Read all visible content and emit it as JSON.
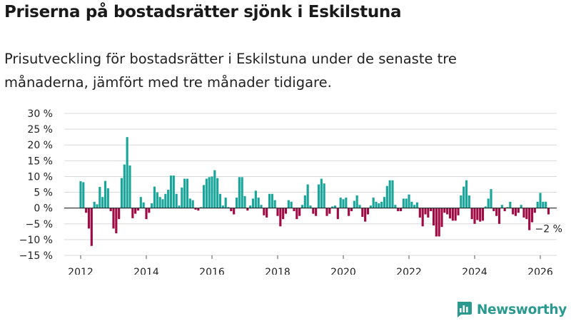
{
  "title": "Priserna på bostadsrätter sjönk i Eskilstuna",
  "subtitle": "Prisutveckling för bostadsrätter i Eskilstuna under de senaste tre månaderna, jämfört med tre månader tidigare.",
  "brand": {
    "name": "Newsworthy"
  },
  "colors": {
    "positive": "#1aa59b",
    "negative": "#a00a45",
    "grid": "#d9d9d9",
    "axis": "#222222"
  },
  "chart_data": {
    "type": "bar",
    "title": "",
    "xlabel": "",
    "ylabel": "",
    "ylim": [
      -15,
      30
    ],
    "y_ticks": [
      -15,
      -10,
      -5,
      0,
      5,
      10,
      15,
      20,
      25,
      30
    ],
    "y_tick_labels": [
      "−15 %",
      "−10 %",
      "−5 %",
      "0 %",
      "5 %",
      "10 %",
      "15 %",
      "20 %",
      "25 %",
      "30 %"
    ],
    "x_range": [
      2011.5,
      2026.5
    ],
    "x_ticks": [
      2012,
      2014,
      2016,
      2018,
      2020,
      2022,
      2024,
      2026
    ],
    "x_tick_labels": [
      "2012",
      "2014",
      "2016",
      "2018",
      "2020",
      "2022",
      "2024",
      "2026"
    ],
    "start": {
      "year": 2012,
      "month": 1
    },
    "unit": "%",
    "values": [
      8.5,
      8.2,
      -1.5,
      -6.5,
      -12.0,
      2.0,
      1.2,
      6.7,
      3.5,
      8.6,
      6.3,
      -1.0,
      -6.5,
      -8.0,
      -3.5,
      9.5,
      13.8,
      22.5,
      13.5,
      -3.2,
      -1.8,
      -0.8,
      3.5,
      1.8,
      -3.5,
      -1.5,
      1.5,
      6.8,
      5.0,
      3.5,
      2.8,
      4.5,
      5.8,
      10.3,
      10.3,
      4.5,
      0.8,
      6.5,
      9.3,
      9.3,
      3.0,
      2.5,
      -0.5,
      -0.8,
      0.3,
      7.3,
      9.3,
      9.8,
      10.0,
      12.0,
      9.5,
      4.5,
      0.8,
      3.3,
      0.3,
      -1.0,
      -2.0,
      3.3,
      9.8,
      9.8,
      3.8,
      -0.8,
      0.8,
      3.0,
      5.5,
      3.3,
      1.0,
      -2.3,
      -3.0,
      4.5,
      4.5,
      2.5,
      -2.5,
      -5.8,
      -3.5,
      -1.8,
      2.5,
      2.0,
      -1.0,
      -3.5,
      -2.5,
      1.0,
      4.0,
      7.5,
      0.8,
      -1.8,
      -2.5,
      7.5,
      9.3,
      7.8,
      -2.5,
      -1.8,
      0.5,
      0.8,
      -3.5,
      3.3,
      2.8,
      3.3,
      -2.5,
      -1.0,
      2.3,
      4.0,
      1.0,
      -2.8,
      -4.3,
      -2.0,
      0.8,
      3.3,
      2.0,
      1.5,
      2.0,
      3.5,
      7.0,
      8.8,
      8.8,
      1.0,
      -1.0,
      -1.0,
      3.0,
      3.0,
      4.3,
      2.0,
      1.0,
      1.8,
      -3.0,
      -5.8,
      -2.0,
      -3.0,
      -1.0,
      -5.5,
      -9.0,
      -9.0,
      -6.0,
      -1.5,
      -2.0,
      -3.3,
      -4.0,
      -4.0,
      -2.3,
      4.0,
      6.8,
      8.8,
      4.0,
      -3.5,
      -5.0,
      -3.8,
      -4.3,
      -4.0,
      0.5,
      3.0,
      6.0,
      -1.0,
      -2.5,
      -5.0,
      1.0,
      -1.0,
      0.3,
      2.0,
      -2.0,
      -2.5,
      -1.5,
      1.0,
      -3.0,
      -3.5,
      -7.0,
      -4.5,
      -1.5,
      2.0,
      4.8,
      2.0,
      2.0,
      -2.0
    ],
    "annotation": {
      "text": "−2 %",
      "value": -2
    }
  }
}
